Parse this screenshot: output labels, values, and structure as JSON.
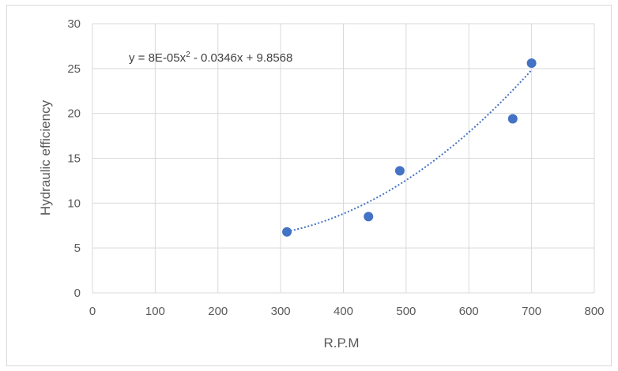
{
  "chart_data": {
    "type": "scatter",
    "xlabel": "R.P.M",
    "ylabel": "Hydraulic efficiency",
    "xlim": [
      0,
      800
    ],
    "ylim": [
      0,
      30
    ],
    "x_ticks": [
      "0",
      "100",
      "200",
      "300",
      "400",
      "500",
      "600",
      "700",
      "800"
    ],
    "y_ticks": [
      "0",
      "5",
      "10",
      "15",
      "20",
      "25",
      "30"
    ],
    "grid": true,
    "series": [
      {
        "points": [
          {
            "x": 310,
            "y": 6.8
          },
          {
            "x": 440,
            "y": 8.5
          },
          {
            "x": 490,
            "y": 13.6
          },
          {
            "x": 670,
            "y": 19.4
          },
          {
            "x": 700,
            "y": 25.6
          }
        ],
        "color": "#4472c4"
      }
    ],
    "trendline": {
      "type": "polynomial",
      "coefficients": [
        8e-05,
        -0.0346,
        9.8568
      ],
      "x_range": [
        310,
        700
      ],
      "style": "dotted",
      "color": "#4472c4",
      "equation_prefix": "y = 8E-05x",
      "equation_sup": "2",
      "equation_suffix": " - 0.0346x + 9.8568"
    }
  }
}
